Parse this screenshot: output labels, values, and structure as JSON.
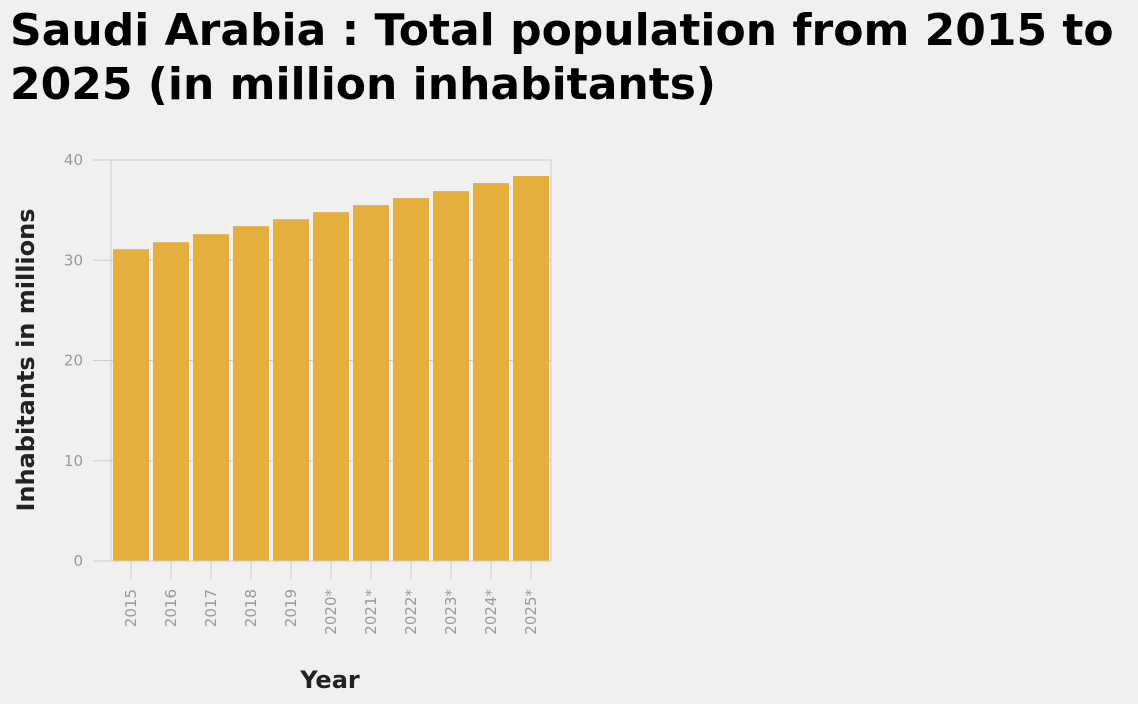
{
  "chart_data": {
    "type": "bar",
    "title": "Saudi Arabia : Total population from 2015 to 2025 (in million inhabitants)",
    "xlabel": "Year",
    "ylabel": "Inhabitants in millions",
    "categories": [
      "2015",
      "2016",
      "2017",
      "2018",
      "2019",
      "2020*",
      "2021*",
      "2022*",
      "2023*",
      "2024*",
      "2025*"
    ],
    "values": [
      31.1,
      31.8,
      32.6,
      33.4,
      34.1,
      34.8,
      35.5,
      36.2,
      36.9,
      37.7,
      38.4
    ],
    "ylim": [
      0,
      40
    ],
    "yticks": [
      0,
      10,
      20,
      30,
      40
    ],
    "grid": true,
    "bar_color": "#e6ae3c",
    "grid_color": "#cccccc"
  }
}
